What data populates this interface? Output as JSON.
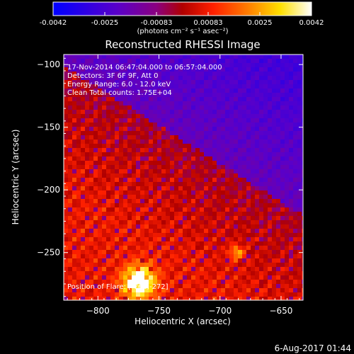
{
  "colorbar": {
    "ticks": [
      "-0.0042",
      "-0.0025",
      "-0.00083",
      "0.00083",
      "0.0025",
      "0.0042"
    ],
    "units": "(photons cm⁻² s⁻¹ asec⁻²)",
    "range": [
      -0.0042,
      0.0042
    ],
    "colors": [
      "#0000ff",
      "#5a00c8",
      "#8a0080",
      "#b00000",
      "#ff2000",
      "#ff7a00",
      "#ffe000",
      "#ffffff"
    ]
  },
  "chart_data": {
    "type": "heatmap",
    "title": "Reconstructed RHESSI Image",
    "xlabel": "Heliocentric X (arcsec)",
    "ylabel": "Heliocentric Y (arcsec)",
    "xlim": [
      -828,
      -632
    ],
    "ylim": [
      -288,
      -92
    ],
    "x_ticks": [
      -800,
      -750,
      -700,
      -650
    ],
    "y_ticks": [
      -100,
      -150,
      -200,
      -250
    ],
    "annotations": [
      "17-Nov-2014 06:47:04.000 to 06:57:04.000",
      "Detectors: 3F 6F 9F, Att 0",
      "Energy Range: 6.0 - 12.0 keV",
      "Clean     Total counts: 1.75E+04"
    ],
    "flare_position_label": "Position of Flare: [-768,-272]",
    "flare_position": [
      -768,
      -272
    ],
    "secondary_peak": [
      -688,
      -248
    ]
  },
  "footer": {
    "date": "6-Aug-2017 01:44"
  }
}
